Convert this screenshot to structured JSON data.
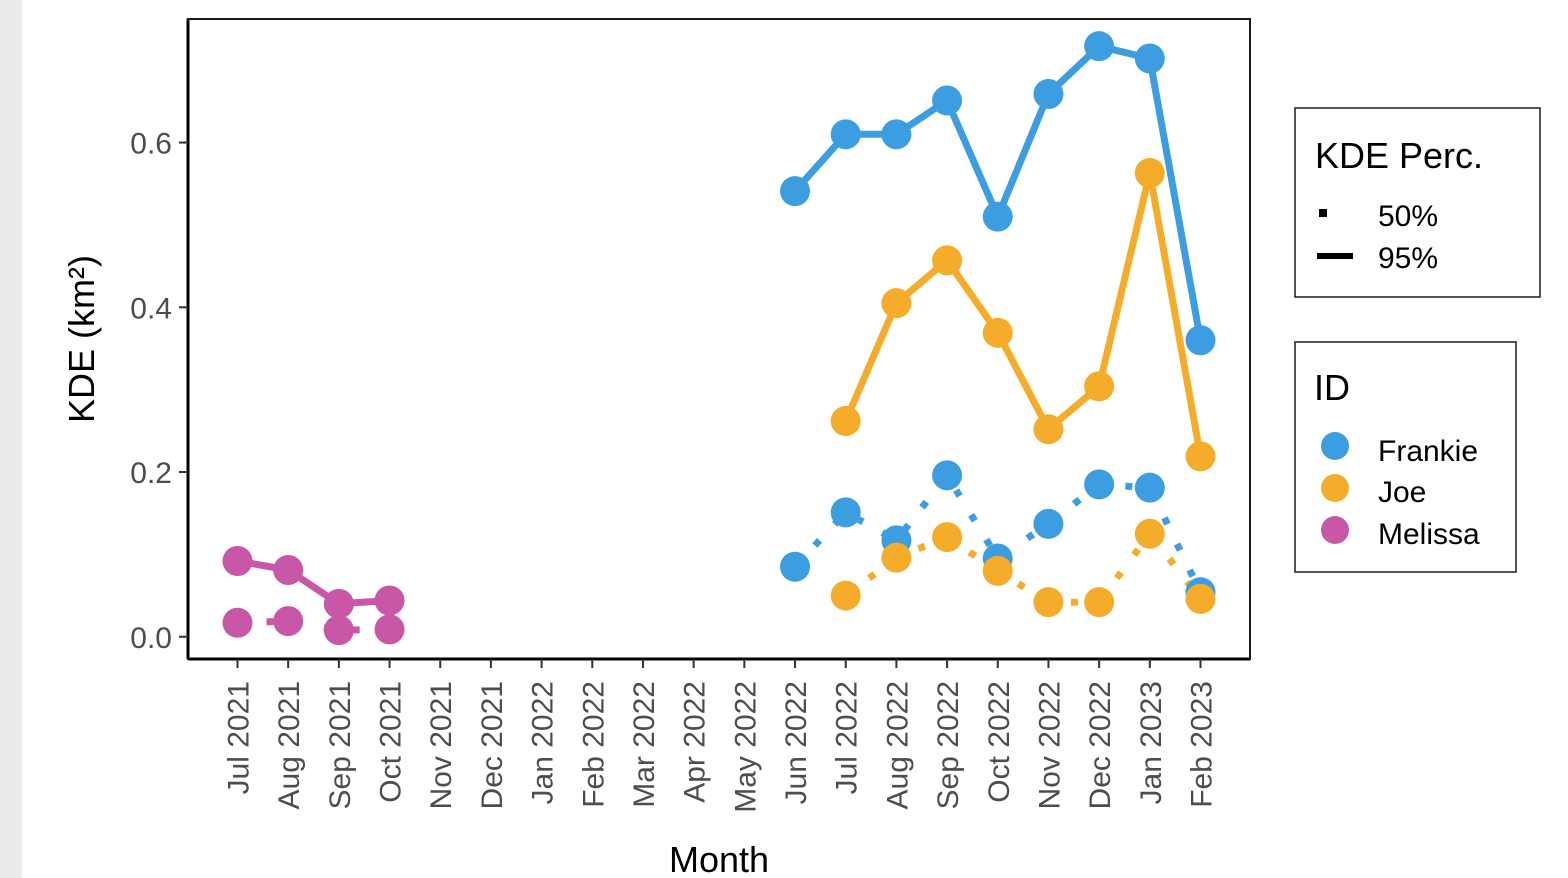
{
  "chart_data": {
    "type": "line",
    "title": "",
    "xlabel": "Month",
    "ylabel": "KDE (km²)",
    "ylim": [
      -0.027,
      0.75
    ],
    "yticks": [
      0.0,
      0.2,
      0.4,
      0.6
    ],
    "ytick_labels": [
      "0.0",
      "0.2",
      "0.4",
      "0.6"
    ],
    "categories": [
      "Jul 2021",
      "Aug 2021",
      "Sep 2021",
      "Oct 2021",
      "Nov 2021",
      "Dec 2021",
      "Jan 2022",
      "Feb 2022",
      "Mar 2022",
      "Apr 2022",
      "May 2022",
      "Jun 2022",
      "Jul 2022",
      "Aug 2022",
      "Sep 2022",
      "Oct 2022",
      "Nov 2022",
      "Dec 2022",
      "Jan 2023",
      "Feb 2023"
    ],
    "grid": false,
    "legend_placement": "right",
    "legends": {
      "linetype": {
        "title": "KDE Perc.",
        "entries": [
          "50%",
          "95%"
        ]
      },
      "color": {
        "title": "ID",
        "entries": [
          "Frankie",
          "Joe",
          "Melissa"
        ]
      }
    },
    "series": [
      {
        "name": "Frankie",
        "perc": "95%",
        "color": "#3c9ee0",
        "x": [
          "Jun 2022",
          "Jul 2022",
          "Aug 2022",
          "Sep 2022",
          "Oct 2022",
          "Nov 2022",
          "Dec 2022",
          "Jan 2023",
          "Feb 2023"
        ],
        "values": [
          0.541,
          0.61,
          0.61,
          0.651,
          0.51,
          0.659,
          0.717,
          0.702,
          0.36
        ]
      },
      {
        "name": "Frankie",
        "perc": "50%",
        "color": "#3c9ee0",
        "x": [
          "Jun 2022",
          "Jul 2022",
          "Aug 2022",
          "Sep 2022",
          "Oct 2022",
          "Nov 2022",
          "Dec 2022",
          "Jan 2023",
          "Feb 2023"
        ],
        "values": [
          0.085,
          0.151,
          0.117,
          0.196,
          0.095,
          0.137,
          0.185,
          0.181,
          0.054
        ]
      },
      {
        "name": "Joe",
        "perc": "95%",
        "color": "#f5ac2a",
        "x": [
          "Jul 2022",
          "Aug 2022",
          "Sep 2022",
          "Oct 2022",
          "Nov 2022",
          "Dec 2022",
          "Jan 2023",
          "Feb 2023"
        ],
        "values": [
          0.262,
          0.405,
          0.457,
          0.369,
          0.252,
          0.304,
          0.563,
          0.219
        ]
      },
      {
        "name": "Joe",
        "perc": "50%",
        "color": "#f5ac2a",
        "x": [
          "Jul 2022",
          "Aug 2022",
          "Sep 2022",
          "Oct 2022",
          "Nov 2022",
          "Dec 2022",
          "Jan 2023",
          "Feb 2023"
        ],
        "values": [
          0.05,
          0.096,
          0.121,
          0.08,
          0.042,
          0.042,
          0.125,
          0.046
        ]
      },
      {
        "name": "Melissa",
        "perc": "95%",
        "color": "#c957a8",
        "x": [
          "Jul 2021",
          "Aug 2021",
          "Sep 2021",
          "Oct 2021"
        ],
        "values": [
          0.092,
          0.081,
          0.04,
          0.044
        ]
      },
      {
        "name": "Melissa",
        "perc": "50%",
        "color": "#c957a8",
        "x": [
          "Jul 2021",
          "Aug 2021",
          "Sep 2021",
          "Oct 2021"
        ],
        "values": [
          0.017,
          0.019,
          0.008,
          0.009
        ]
      }
    ]
  }
}
